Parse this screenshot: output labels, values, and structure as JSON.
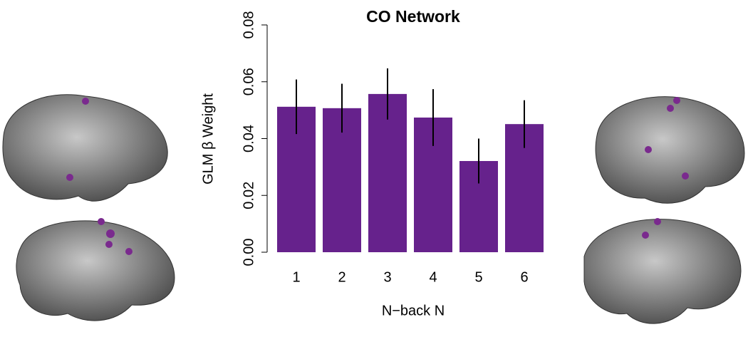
{
  "chart_data": {
    "type": "bar",
    "title": "CO Network",
    "x_label": "N−back N",
    "y_label": "GLM β Weight",
    "categories": [
      "1",
      "2",
      "3",
      "4",
      "5",
      "6"
    ],
    "values": [
      0.0512,
      0.0507,
      0.0557,
      0.0474,
      0.0321,
      0.0451
    ],
    "errors": [
      0.0096,
      0.0086,
      0.009,
      0.01,
      0.0079,
      0.0084
    ],
    "color": "#66228c",
    "ylim": [
      0,
      0.08
    ],
    "yticks": [
      {
        "value": 0,
        "label": "0.00"
      },
      {
        "value": 0.02,
        "label": "0.02"
      },
      {
        "value": 0.04,
        "label": "0.04"
      },
      {
        "value": 0.06,
        "label": "0.06"
      },
      {
        "value": 0.08,
        "label": "0.08"
      }
    ]
  }
}
